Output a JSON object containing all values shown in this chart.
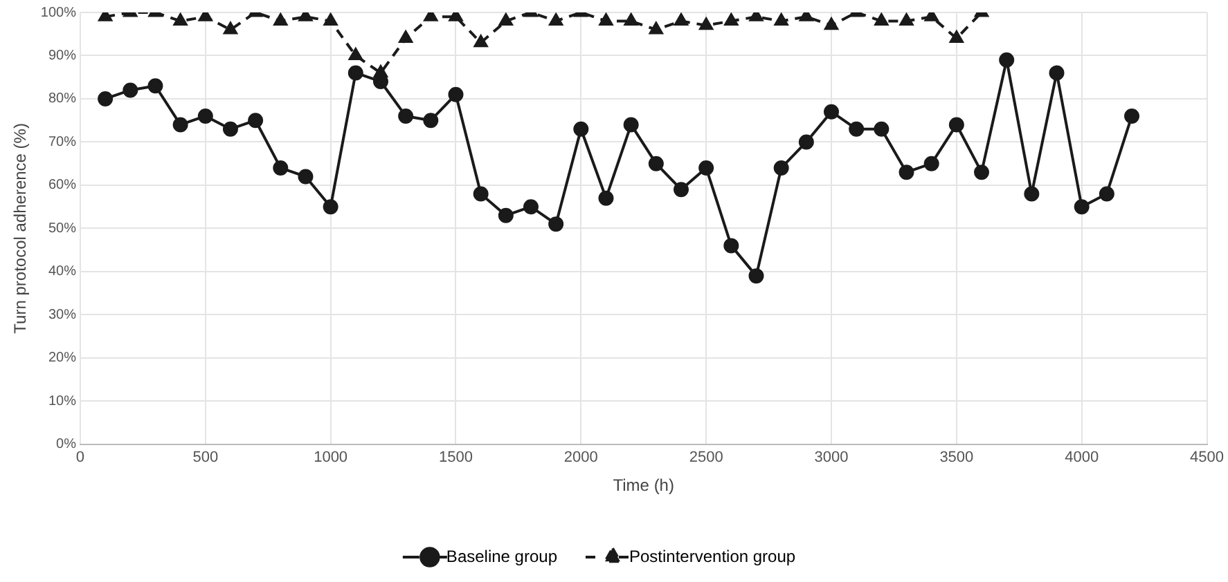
{
  "chart_data": {
    "type": "line",
    "xlabel": "Time (h)",
    "ylabel": "Turn protocol adherence (%)",
    "xlim": [
      0,
      4500
    ],
    "xticks": [
      0,
      500,
      1000,
      1500,
      2000,
      2500,
      3000,
      3500,
      4000,
      4500
    ],
    "ylim": [
      0,
      100
    ],
    "yticks": [
      {
        "value": 0,
        "label": "0%"
      },
      {
        "value": 10,
        "label": "10%"
      },
      {
        "value": 20,
        "label": "20%"
      },
      {
        "value": 30,
        "label": "30%"
      },
      {
        "value": 40,
        "label": "40%"
      },
      {
        "value": 50,
        "label": "50%"
      },
      {
        "value": 60,
        "label": "60%"
      },
      {
        "value": 70,
        "label": "70%"
      },
      {
        "value": 80,
        "label": "80%"
      },
      {
        "value": 90,
        "label": "90%"
      },
      {
        "value": 100,
        "label": "100%"
      }
    ],
    "grid": true,
    "legend": "bottom",
    "series": [
      {
        "name": "Baseline group",
        "color": "#1a1a1a",
        "marker": "circle",
        "line_style": "solid",
        "x": [
          100,
          200,
          300,
          400,
          500,
          600,
          700,
          800,
          900,
          1000,
          1100,
          1200,
          1300,
          1400,
          1500,
          1600,
          1700,
          1800,
          1900,
          2000,
          2100,
          2200,
          2300,
          2400,
          2500,
          2600,
          2700,
          2800,
          2900,
          3000,
          3100,
          3200,
          3300,
          3400,
          3500,
          3600,
          3700,
          3800,
          3900,
          4000,
          4100,
          4200
        ],
        "values": [
          80,
          82,
          83,
          74,
          76,
          73,
          75,
          64,
          62,
          55,
          86,
          84,
          76,
          75,
          81,
          58,
          53,
          55,
          51,
          73,
          57,
          74,
          65,
          59,
          64,
          46,
          39,
          64,
          70,
          77,
          73,
          73,
          63,
          65,
          74,
          63,
          89,
          58,
          86,
          55,
          58,
          76
        ]
      },
      {
        "name": "Postintervention group",
        "color": "#1a1a1a",
        "marker": "triangle",
        "line_style": "dashed",
        "x": [
          100,
          200,
          300,
          400,
          500,
          600,
          700,
          800,
          900,
          1000,
          1100,
          1200,
          1300,
          1400,
          1500,
          1600,
          1700,
          1800,
          1900,
          2000,
          2100,
          2200,
          2300,
          2400,
          2500,
          2600,
          2700,
          2800,
          2900,
          3000,
          3100,
          3200,
          3300,
          3400,
          3500,
          3600
        ],
        "values": [
          99,
          100,
          100,
          98,
          99,
          96,
          100,
          98,
          99,
          98,
          90,
          86,
          94,
          99,
          99,
          93,
          98,
          100,
          98,
          100,
          98,
          98,
          96,
          98,
          97,
          98,
          99,
          98,
          99,
          97,
          100,
          98,
          98,
          99,
          94,
          100
        ]
      }
    ]
  }
}
